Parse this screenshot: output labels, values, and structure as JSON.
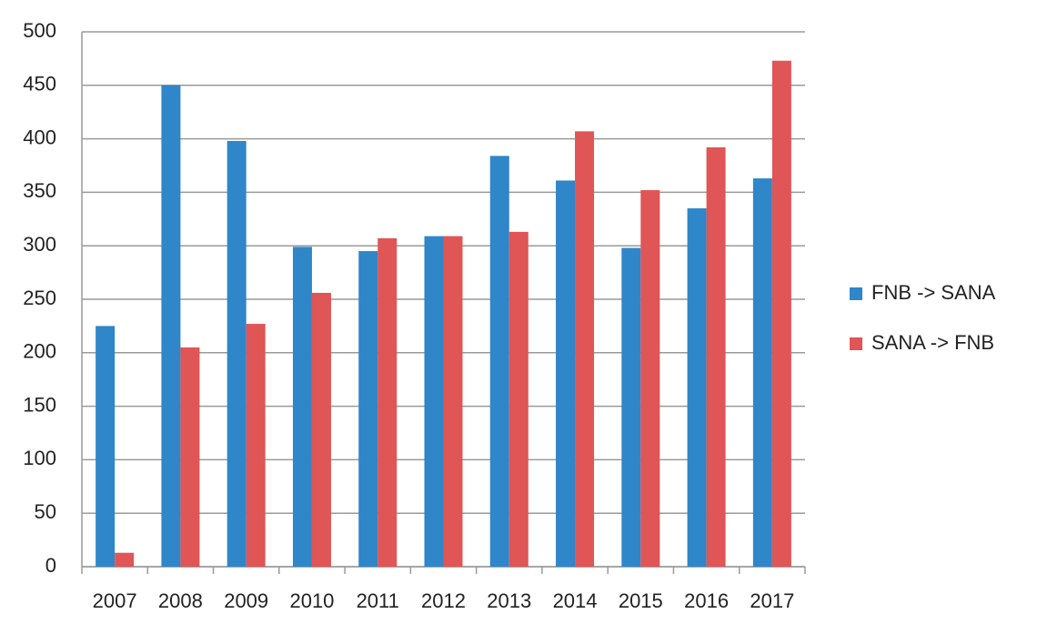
{
  "chart_data": {
    "type": "bar",
    "categories": [
      "2007",
      "2008",
      "2009",
      "2010",
      "2011",
      "2012",
      "2013",
      "2014",
      "2015",
      "2016",
      "2017"
    ],
    "series": [
      {
        "name": "FNB -> SANA",
        "color": "#2f86c9",
        "values": [
          225,
          450,
          398,
          299,
          295,
          309,
          384,
          361,
          298,
          335,
          363
        ]
      },
      {
        "name": "SANA -> FNB",
        "color": "#e05555",
        "values": [
          13,
          205,
          227,
          256,
          307,
          309,
          313,
          407,
          352,
          392,
          473
        ]
      }
    ],
    "ylim": [
      0,
      500
    ],
    "yticks": [
      0,
      50,
      100,
      150,
      200,
      250,
      300,
      350,
      400,
      450,
      500
    ],
    "grid": true,
    "legend": "right"
  }
}
